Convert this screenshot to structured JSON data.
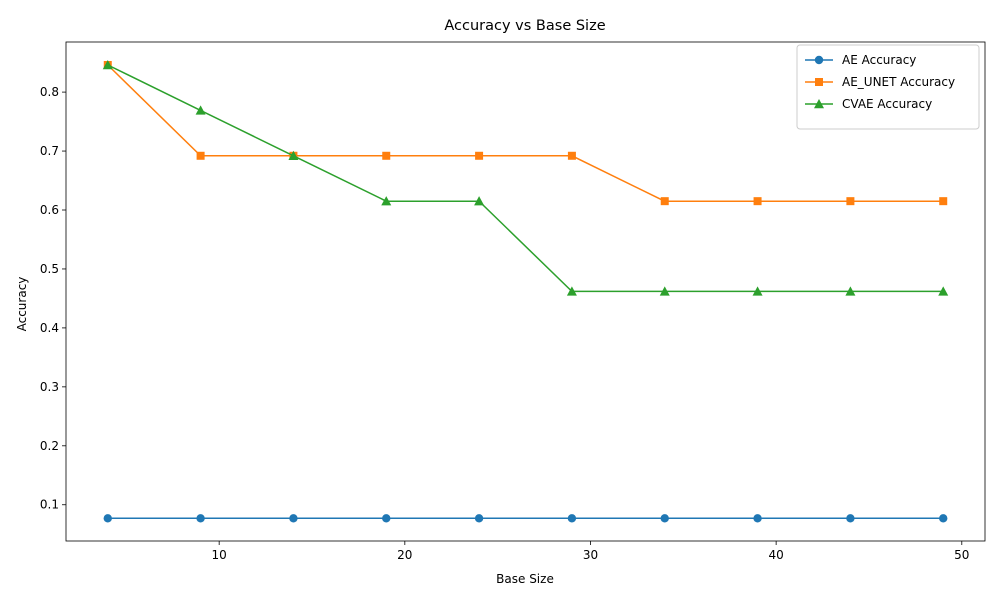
{
  "chart_data": {
    "type": "line",
    "title": "Accuracy vs Base Size",
    "xlabel": "Base Size",
    "ylabel": "Accuracy",
    "x": [
      4,
      9,
      14,
      19,
      24,
      29,
      34,
      39,
      44,
      49
    ],
    "xlim": [
      1.75,
      51.25
    ],
    "ylim": [
      0.0385,
      0.885
    ],
    "xticks": [
      10,
      20,
      30,
      40,
      50
    ],
    "yticks": [
      0.1,
      0.2,
      0.3,
      0.4,
      0.5,
      0.6,
      0.7,
      0.8
    ],
    "grid": false,
    "legend_position": "top-right",
    "series": [
      {
        "name": "AE Accuracy",
        "color": "#1f77b4",
        "marker": "circle",
        "values": [
          0.077,
          0.077,
          0.077,
          0.077,
          0.077,
          0.077,
          0.077,
          0.077,
          0.077,
          0.077
        ]
      },
      {
        "name": "AE_UNET Accuracy",
        "color": "#ff7f0e",
        "marker": "square",
        "values": [
          0.846,
          0.692,
          0.692,
          0.692,
          0.692,
          0.692,
          0.615,
          0.615,
          0.615,
          0.615
        ]
      },
      {
        "name": "CVAE Accuracy",
        "color": "#2ca02c",
        "marker": "triangle",
        "values": [
          0.846,
          0.769,
          0.692,
          0.615,
          0.615,
          0.462,
          0.462,
          0.462,
          0.462,
          0.462
        ]
      }
    ]
  }
}
